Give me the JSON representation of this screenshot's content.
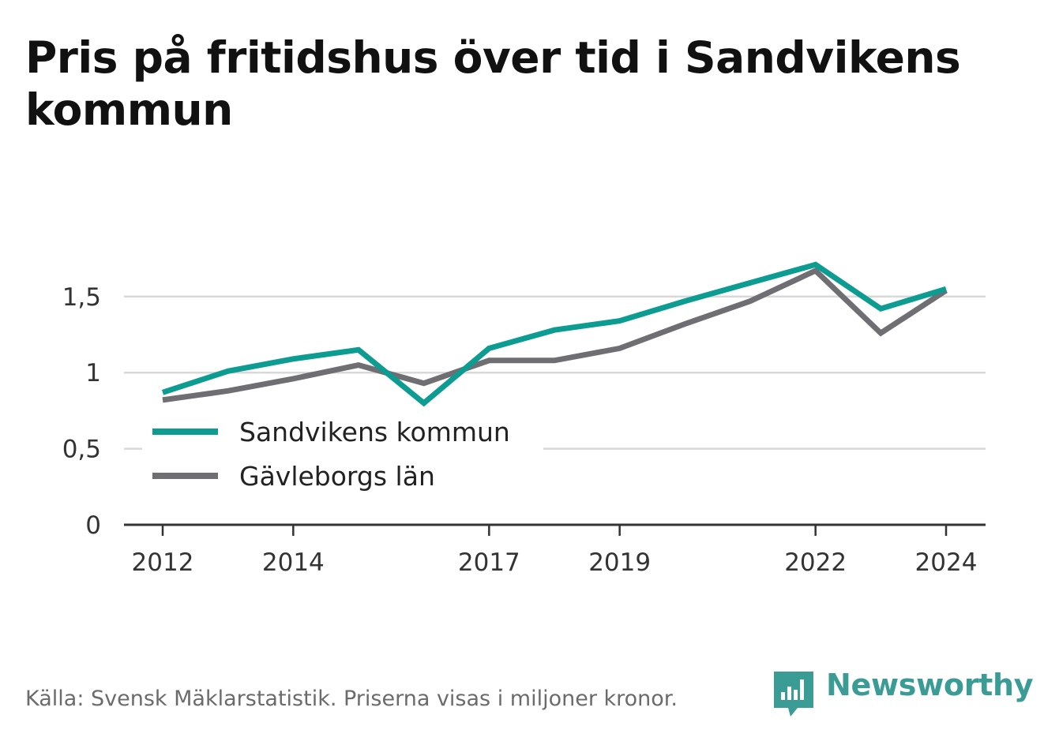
{
  "title": "Pris på fritidshus över tid i Sandvikens kommun",
  "source": "Källa: Svensk Mäklarstatistik. Priserna visas i miljoner kronor.",
  "brand": {
    "name": "Newsworthy",
    "icon": "bar-chart-speech-bubble-icon",
    "color": "#3a9c94"
  },
  "chart_data": {
    "type": "line",
    "title": "Pris på fritidshus över tid i Sandvikens kommun",
    "xlabel": "",
    "ylabel": "",
    "x": [
      2012,
      2013,
      2014,
      2015,
      2016,
      2017,
      2018,
      2019,
      2020,
      2021,
      2022,
      2023,
      2024
    ],
    "x_tick_values": [
      2012,
      2014,
      2017,
      2019,
      2022,
      2024
    ],
    "x_tick_labels": [
      "2012",
      "2014",
      "2017",
      "2019",
      "2022",
      "2024"
    ],
    "y_tick_values": [
      0,
      0.5,
      1,
      1.5
    ],
    "y_tick_labels": [
      "0",
      "0,5",
      "1",
      "1,5"
    ],
    "ylim": [
      0,
      1.85
    ],
    "xlim": [
      2011.4,
      2024.6
    ],
    "grid": true,
    "legend_position": "inside-left",
    "series": [
      {
        "name": "Sandvikens kommun",
        "color": "#0c9c92",
        "values": [
          0.87,
          1.01,
          1.09,
          1.15,
          0.8,
          1.16,
          1.28,
          1.34,
          1.47,
          1.59,
          1.71,
          1.42,
          1.55
        ]
      },
      {
        "name": "Gävleborgs län",
        "color": "#6e6e73",
        "values": [
          0.82,
          0.88,
          0.96,
          1.05,
          0.93,
          1.08,
          1.08,
          1.16,
          1.32,
          1.47,
          1.67,
          1.26,
          1.54
        ]
      }
    ]
  }
}
